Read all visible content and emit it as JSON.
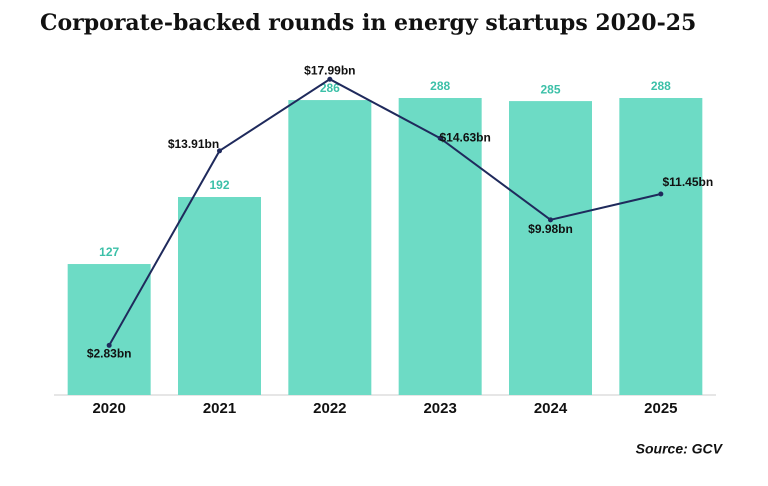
{
  "chart_data": {
    "type": "bar",
    "title": "Corporate-backed rounds in energy startups 2020-25",
    "source": "Source: GCV",
    "categories": [
      "2020",
      "2021",
      "2022",
      "2023",
      "2024",
      "2025"
    ],
    "ylim": [
      0,
      320
    ],
    "y2lim": [
      0,
      18.8
    ],
    "series": [
      {
        "type": "bar",
        "color": "#6ddbc5",
        "label_color": "#3cc0a8",
        "values": [
          127,
          192,
          286,
          288,
          285,
          288
        ]
      },
      {
        "type": "line",
        "axis": "y2",
        "color": "#1f2a5c",
        "values": [
          2.83,
          13.91,
          17.99,
          14.63,
          9.98,
          11.45
        ],
        "value_labels": [
          "$2.83bn",
          "$13.91bn",
          "$17.99bn",
          "$14.63bn",
          "$9.98bn",
          "$11.45bn"
        ]
      }
    ]
  }
}
